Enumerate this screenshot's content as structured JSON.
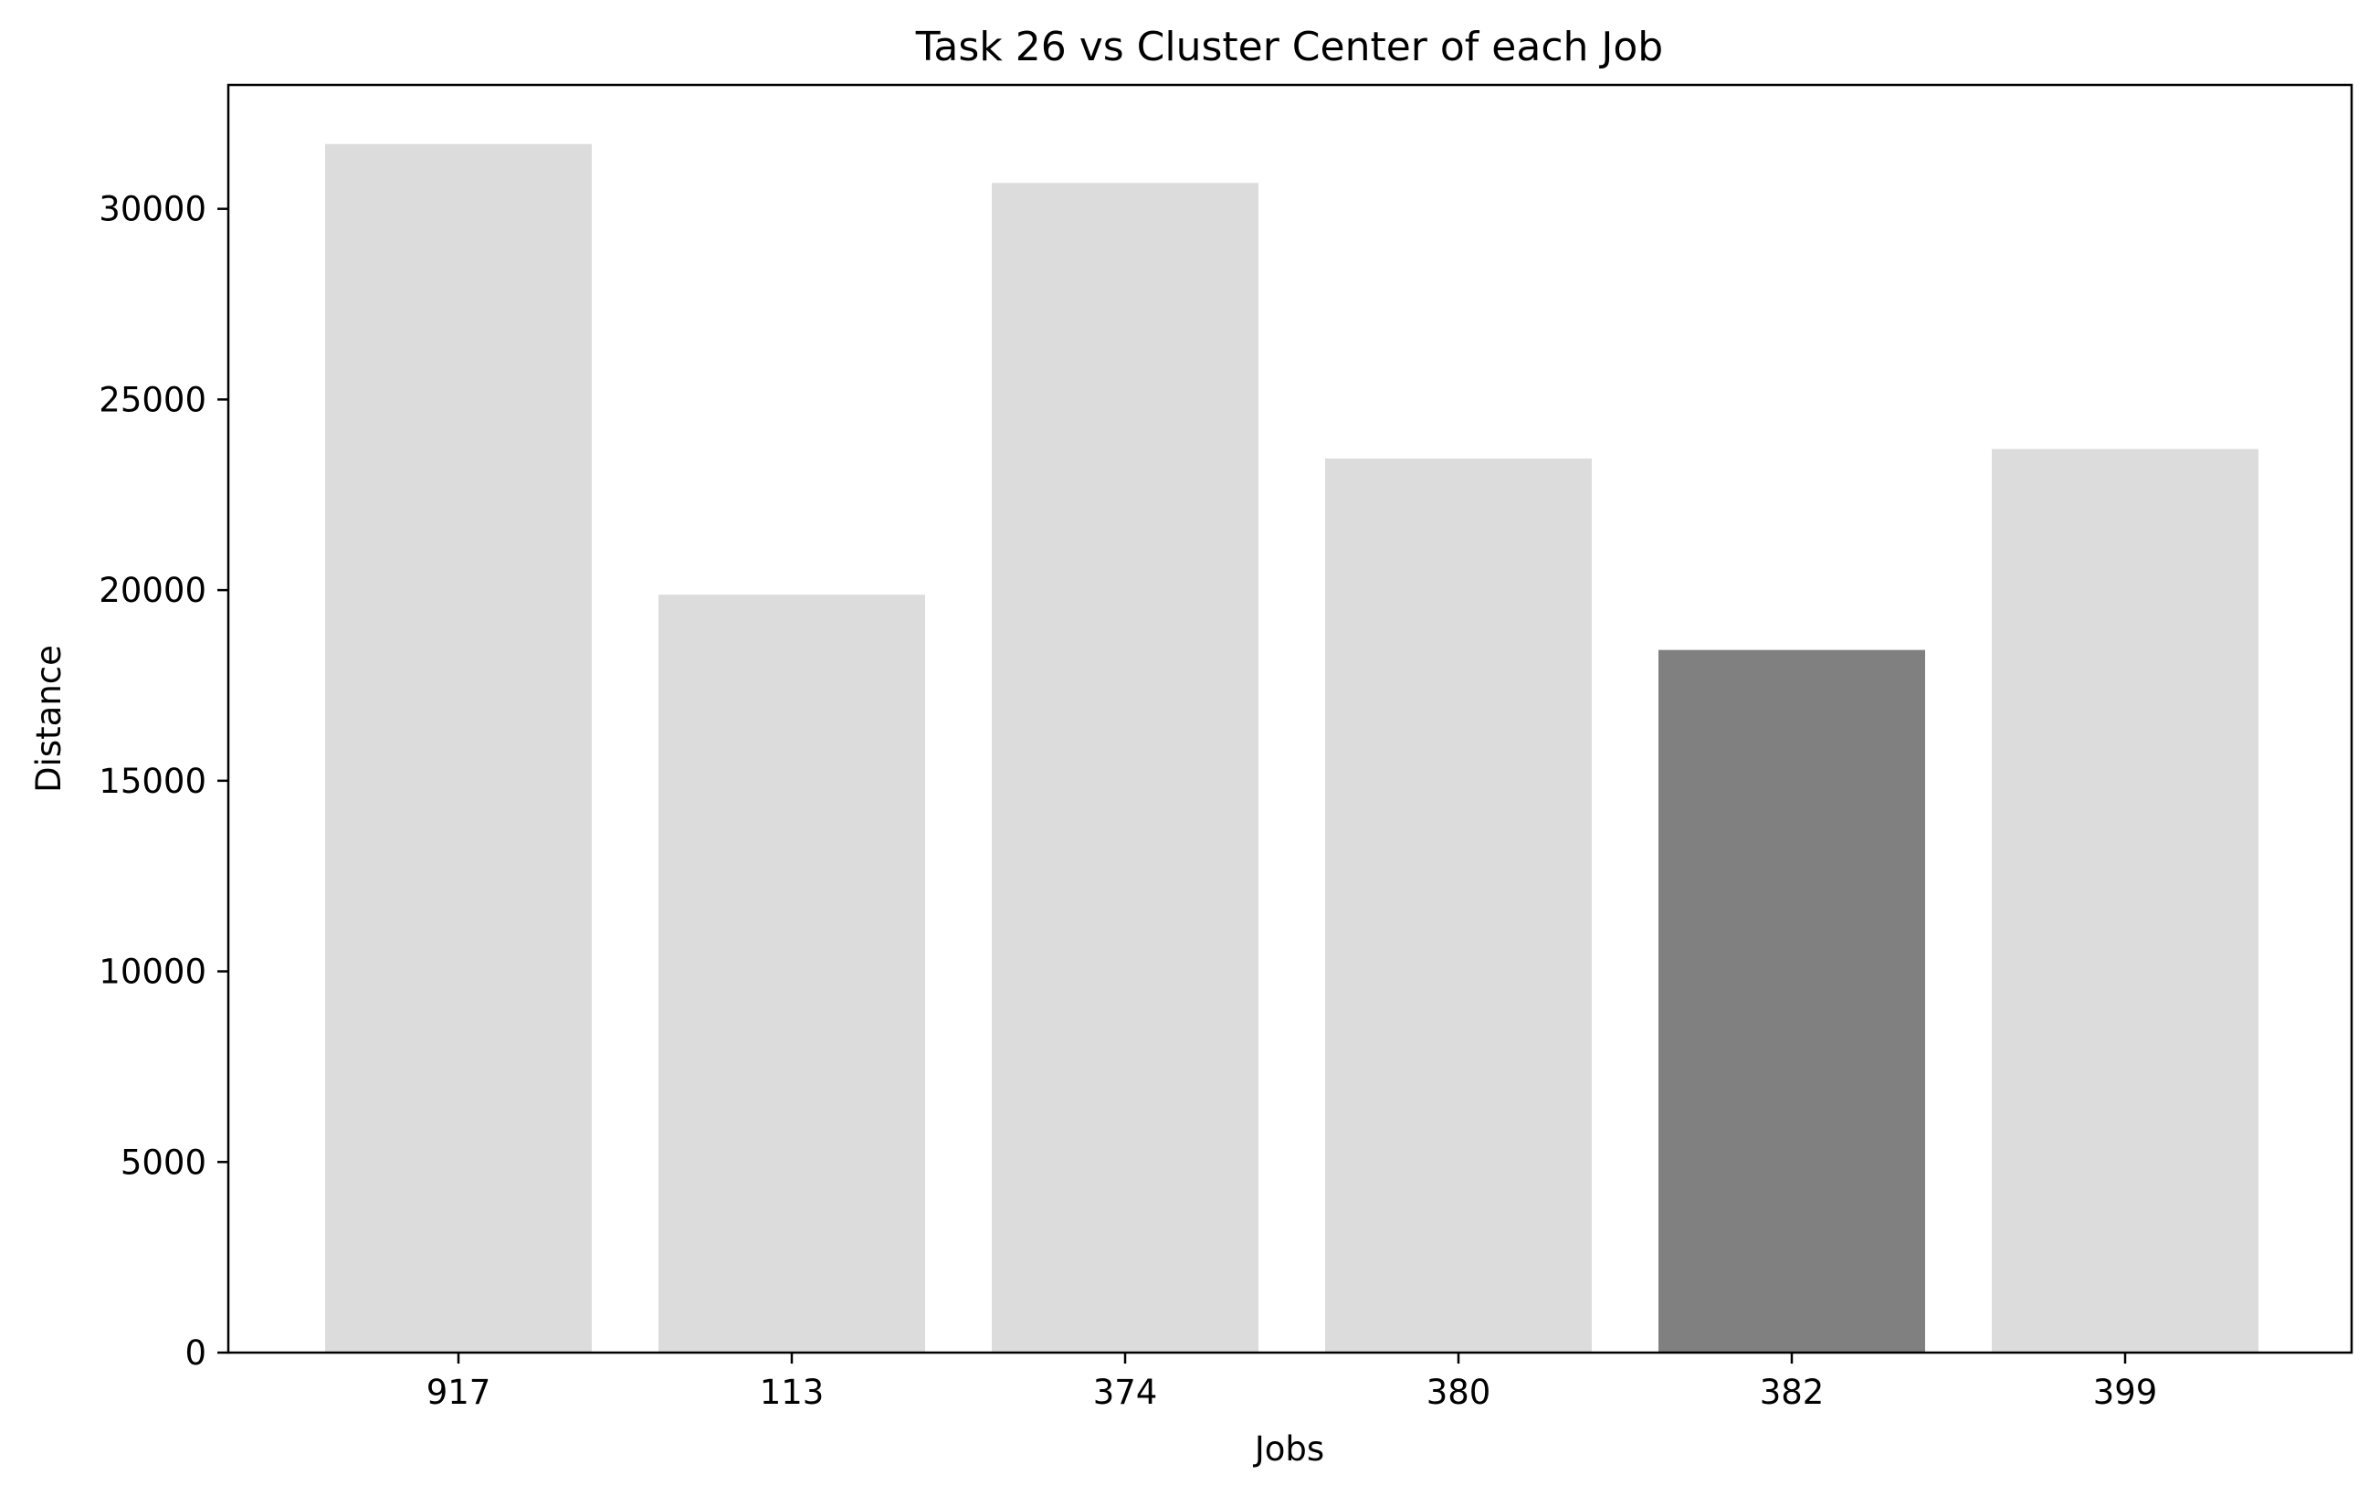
{
  "chart_data": {
    "type": "bar",
    "title": "Task 26 vs Cluster Center of each Job",
    "xlabel": "Jobs",
    "ylabel": "Distance",
    "categories": [
      "917",
      "113",
      "374",
      "380",
      "382",
      "399"
    ],
    "values": [
      31700,
      19880,
      30680,
      23450,
      18430,
      23700
    ],
    "highlight_index": 4,
    "ylim": [
      0,
      33250
    ],
    "yticks": [
      0,
      5000,
      10000,
      15000,
      20000,
      25000,
      30000
    ],
    "grid": false,
    "legend": "none",
    "colors": {
      "bar": "#dcdcdc",
      "highlight": "#808080",
      "axes": "#000000"
    }
  }
}
